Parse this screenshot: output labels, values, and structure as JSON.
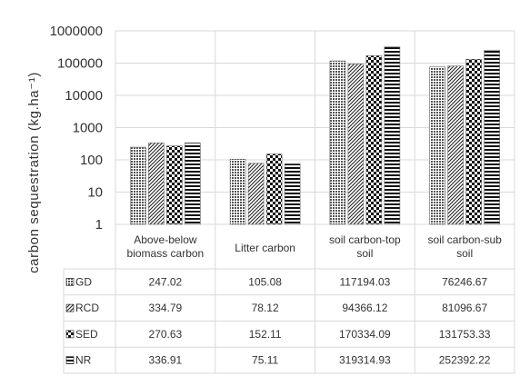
{
  "chart_data": {
    "type": "bar",
    "ylabel": "carbon sequestration (kg.ha⁻¹)",
    "yscale": "log",
    "ylim": [
      1,
      1000000
    ],
    "yticks": [
      "1",
      "10",
      "100",
      "1000",
      "10000",
      "100000",
      "1000000"
    ],
    "categories": [
      [
        "Above-below",
        "biomass carbon"
      ],
      [
        "Litter carbon"
      ],
      [
        "soil carbon-top",
        "soil"
      ],
      [
        "soil carbon-sub",
        "soil"
      ]
    ],
    "series": [
      {
        "name": "GD",
        "values": [
          247.02,
          105.08,
          117194.03,
          76246.67
        ],
        "display": [
          "247.02",
          "105.08",
          "117194.03",
          "76246.67"
        ],
        "pattern": "dots"
      },
      {
        "name": "RCD",
        "values": [
          334.79,
          78.12,
          94366.12,
          81096.67
        ],
        "display": [
          "334.79",
          "78.12",
          "94366.12",
          "81096.67"
        ],
        "pattern": "diagonal"
      },
      {
        "name": "SED",
        "values": [
          270.63,
          152.11,
          170334.09,
          131753.33
        ],
        "display": [
          "270.63",
          "152.11",
          "170334.09",
          "131753.33"
        ],
        "pattern": "checker"
      },
      {
        "name": "NR",
        "values": [
          336.91,
          75.11,
          319314.93,
          252392.22
        ],
        "display": [
          "336.91",
          "75.11",
          "319314.93",
          "252392.22"
        ],
        "pattern": "horizontal"
      }
    ],
    "grid": true,
    "legend": "data-table"
  }
}
